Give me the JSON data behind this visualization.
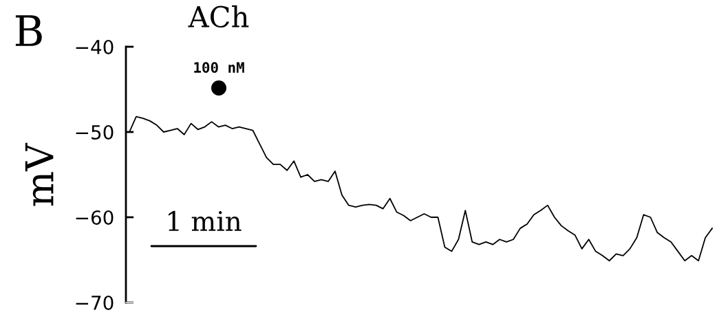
{
  "chart_data": {
    "type": "line",
    "categories": [
      null,
      null,
      null,
      null,
      null,
      null,
      null,
      null,
      null,
      null,
      null,
      null,
      null,
      null,
      null,
      null,
      null,
      null,
      null,
      null,
      null,
      null,
      null,
      null,
      null,
      null,
      null,
      null,
      null,
      null,
      null,
      null,
      null,
      null,
      null,
      null,
      null,
      null,
      null,
      null,
      null,
      null,
      null,
      null,
      null,
      null,
      null,
      null,
      null,
      null,
      null,
      null,
      null,
      null,
      null,
      null,
      null,
      null,
      null,
      null,
      null,
      null,
      null,
      null,
      null,
      null,
      null,
      null,
      null,
      null,
      null,
      null,
      null,
      null,
      null,
      null,
      null,
      null,
      null,
      null,
      null,
      null,
      null,
      null,
      null,
      null
    ],
    "series": [
      {
        "type": "line",
        "color": "#000000",
        "values": [
          -50,
          -48.2,
          -48.4,
          -48.7,
          -49.2,
          -50,
          -49.8,
          -49.6,
          -50.3,
          -49,
          -49.7,
          -49.4,
          -48.8,
          -49.4,
          -49.2,
          -49.6,
          -49.4,
          -49.6,
          -49.8,
          -51.4,
          -53,
          -53.8,
          -53.8,
          -54.5,
          -53.4,
          -55.3,
          -55,
          -55.8,
          -55.6,
          -55.8,
          -54.6,
          -57.4,
          -58.6,
          -58.8,
          -58.6,
          -58.5,
          -58.6,
          -59,
          -57.8,
          -59.4,
          -59.8,
          -60.4,
          -60,
          -59.6,
          -60,
          -60,
          -63.5,
          -64,
          -62.6,
          -59.2,
          -62.9,
          -63.2,
          -62.9,
          -63.2,
          -62.6,
          -62.9,
          -62.6,
          -61.3,
          -60.8,
          -59.7,
          -59.2,
          -58.6,
          -60,
          -61,
          -61.6,
          -62.1,
          -63.7,
          -62.6,
          -64,
          -64.5,
          -65.1,
          -64.3,
          -64.5,
          -63.7,
          -62.4,
          -59.7,
          -60,
          -61.8,
          -62.4,
          -62.9,
          -64,
          -65.1,
          -64.5,
          -65.1,
          -62.4,
          -61.3
        ]
      }
    ],
    "ylabel": "mV",
    "ylim": [
      -70,
      -40
    ],
    "yticks": [
      -70,
      -60,
      -50,
      -40
    ],
    "tick_labels": "y",
    "annotations": [
      "B",
      "ACh",
      "100 nM",
      "1 min"
    ]
  }
}
